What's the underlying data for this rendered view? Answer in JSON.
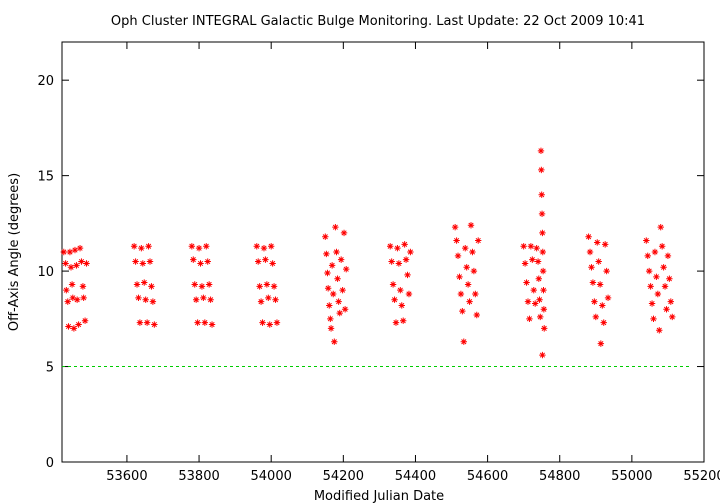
{
  "chart_data": {
    "type": "scatter",
    "title": "Oph Cluster   INTEGRAL Galactic Bulge Monitoring.  Last Update: 22 Oct 2009 10:41",
    "xlabel": "Modified Julian Date",
    "ylabel": "Off-Axis Angle (degrees)",
    "xlim": [
      53420,
      55200
    ],
    "ylim": [
      0,
      22
    ],
    "xticks": [
      53600,
      53800,
      54000,
      54200,
      54400,
      54600,
      54800,
      55000,
      55200
    ],
    "yticks": [
      0,
      5,
      10,
      15,
      20
    ],
    "grid": false,
    "marker": "asterisk",
    "series": [
      {
        "color": "#ff0000",
        "points": [
          [
            53425,
            11.0
          ],
          [
            53430,
            10.4
          ],
          [
            53432,
            9.0
          ],
          [
            53436,
            8.4
          ],
          [
            53438,
            7.1
          ],
          [
            53442,
            11.0
          ],
          [
            53445,
            10.2
          ],
          [
            53448,
            9.3
          ],
          [
            53450,
            8.6
          ],
          [
            53453,
            7.0
          ],
          [
            53456,
            11.1
          ],
          [
            53460,
            10.3
          ],
          [
            53462,
            8.5
          ],
          [
            53466,
            7.2
          ],
          [
            53470,
            11.2
          ],
          [
            53474,
            10.5
          ],
          [
            53478,
            9.2
          ],
          [
            53480,
            8.6
          ],
          [
            53484,
            7.4
          ],
          [
            53488,
            10.4
          ],
          [
            53620,
            11.3
          ],
          [
            53624,
            10.5
          ],
          [
            53628,
            9.3
          ],
          [
            53632,
            8.6
          ],
          [
            53636,
            7.3
          ],
          [
            53640,
            11.2
          ],
          [
            53644,
            10.4
          ],
          [
            53648,
            9.4
          ],
          [
            53652,
            8.5
          ],
          [
            53656,
            7.3
          ],
          [
            53660,
            11.3
          ],
          [
            53664,
            10.5
          ],
          [
            53668,
            9.2
          ],
          [
            53672,
            8.4
          ],
          [
            53676,
            7.2
          ],
          [
            53780,
            11.3
          ],
          [
            53784,
            10.6
          ],
          [
            53788,
            9.3
          ],
          [
            53792,
            8.5
          ],
          [
            53796,
            7.3
          ],
          [
            53800,
            11.2
          ],
          [
            53804,
            10.4
          ],
          [
            53808,
            9.2
          ],
          [
            53812,
            8.6
          ],
          [
            53816,
            7.3
          ],
          [
            53820,
            11.3
          ],
          [
            53824,
            10.5
          ],
          [
            53828,
            9.3
          ],
          [
            53832,
            8.5
          ],
          [
            53836,
            7.2
          ],
          [
            53960,
            11.3
          ],
          [
            53964,
            10.5
          ],
          [
            53968,
            9.2
          ],
          [
            53972,
            8.4
          ],
          [
            53976,
            7.3
          ],
          [
            53980,
            11.2
          ],
          [
            53984,
            10.6
          ],
          [
            53988,
            9.3
          ],
          [
            53992,
            8.6
          ],
          [
            53996,
            7.2
          ],
          [
            54000,
            11.3
          ],
          [
            54004,
            10.4
          ],
          [
            54008,
            9.2
          ],
          [
            54012,
            8.5
          ],
          [
            54016,
            7.3
          ],
          [
            54150,
            11.8
          ],
          [
            54153,
            10.9
          ],
          [
            54156,
            9.9
          ],
          [
            54158,
            9.1
          ],
          [
            54161,
            8.2
          ],
          [
            54164,
            7.5
          ],
          [
            54166,
            7.0
          ],
          [
            54169,
            10.3
          ],
          [
            54172,
            8.8
          ],
          [
            54175,
            6.3
          ],
          [
            54178,
            12.3
          ],
          [
            54181,
            11.0
          ],
          [
            54184,
            9.6
          ],
          [
            54187,
            8.4
          ],
          [
            54190,
            7.8
          ],
          [
            54194,
            10.6
          ],
          [
            54198,
            9.0
          ],
          [
            54202,
            12.0
          ],
          [
            54205,
            8.0
          ],
          [
            54208,
            10.1
          ],
          [
            54330,
            11.3
          ],
          [
            54334,
            10.5
          ],
          [
            54338,
            9.3
          ],
          [
            54342,
            8.5
          ],
          [
            54346,
            7.3
          ],
          [
            54350,
            11.2
          ],
          [
            54354,
            10.4
          ],
          [
            54358,
            9.0
          ],
          [
            54362,
            8.2
          ],
          [
            54366,
            7.4
          ],
          [
            54370,
            11.4
          ],
          [
            54374,
            10.6
          ],
          [
            54378,
            9.8
          ],
          [
            54382,
            8.8
          ],
          [
            54386,
            11.0
          ],
          [
            54510,
            12.3
          ],
          [
            54514,
            11.6
          ],
          [
            54518,
            10.8
          ],
          [
            54522,
            9.7
          ],
          [
            54526,
            8.8
          ],
          [
            54530,
            7.9
          ],
          [
            54534,
            6.3
          ],
          [
            54538,
            11.2
          ],
          [
            54542,
            10.2
          ],
          [
            54546,
            9.3
          ],
          [
            54550,
            8.4
          ],
          [
            54554,
            12.4
          ],
          [
            54558,
            11.0
          ],
          [
            54562,
            10.0
          ],
          [
            54566,
            8.8
          ],
          [
            54570,
            7.7
          ],
          [
            54574,
            11.6
          ],
          [
            54700,
            11.3
          ],
          [
            54704,
            10.4
          ],
          [
            54708,
            9.4
          ],
          [
            54712,
            8.4
          ],
          [
            54716,
            7.5
          ],
          [
            54720,
            11.3
          ],
          [
            54724,
            10.6
          ],
          [
            54728,
            9.0
          ],
          [
            54732,
            8.3
          ],
          [
            54736,
            11.2
          ],
          [
            54740,
            10.5
          ],
          [
            54742,
            9.6
          ],
          [
            54744,
            8.5
          ],
          [
            54746,
            7.6
          ],
          [
            54748,
            16.3
          ],
          [
            54749,
            15.3
          ],
          [
            54750,
            14.0
          ],
          [
            54751,
            13.0
          ],
          [
            54752,
            12.0
          ],
          [
            54753,
            11.0
          ],
          [
            54754,
            10.0
          ],
          [
            54755,
            9.0
          ],
          [
            54756,
            8.0
          ],
          [
            54757,
            7.0
          ],
          [
            54752,
            5.6
          ],
          [
            54880,
            11.8
          ],
          [
            54884,
            11.0
          ],
          [
            54888,
            10.2
          ],
          [
            54892,
            9.4
          ],
          [
            54896,
            8.4
          ],
          [
            54900,
            7.6
          ],
          [
            54904,
            11.5
          ],
          [
            54908,
            10.5
          ],
          [
            54912,
            9.3
          ],
          [
            54914,
            6.2
          ],
          [
            54918,
            8.2
          ],
          [
            54922,
            7.3
          ],
          [
            54926,
            11.4
          ],
          [
            54930,
            10.0
          ],
          [
            54934,
            8.6
          ],
          [
            55040,
            11.6
          ],
          [
            55044,
            10.8
          ],
          [
            55048,
            10.0
          ],
          [
            55052,
            9.2
          ],
          [
            55056,
            8.3
          ],
          [
            55060,
            7.5
          ],
          [
            55064,
            11.0
          ],
          [
            55068,
            9.7
          ],
          [
            55072,
            8.8
          ],
          [
            55076,
            6.9
          ],
          [
            55080,
            12.3
          ],
          [
            55084,
            11.3
          ],
          [
            55088,
            10.2
          ],
          [
            55092,
            9.2
          ],
          [
            55096,
            8.0
          ],
          [
            55100,
            10.8
          ],
          [
            55104,
            9.6
          ],
          [
            55108,
            8.4
          ],
          [
            55112,
            7.6
          ]
        ]
      }
    ],
    "reference_line": {
      "y": 5,
      "color": "#00cc00",
      "style": "dashed"
    }
  }
}
